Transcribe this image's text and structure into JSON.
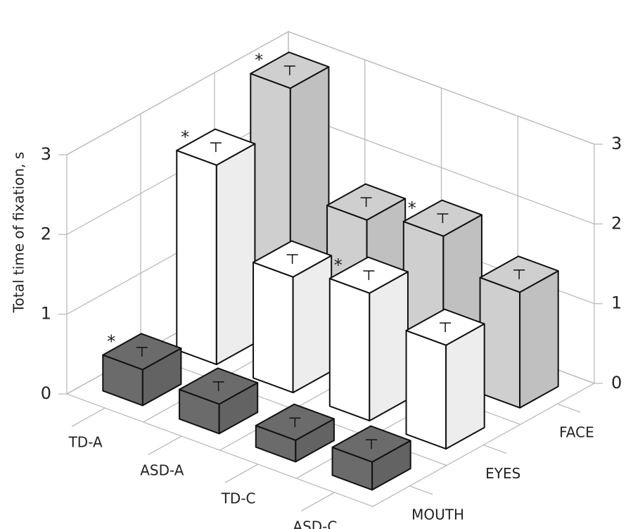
{
  "chart_data": {
    "type": "bar3d",
    "ylabel": "Total time of fixation, s",
    "categories": [
      "TD-A",
      "ASD-A",
      "TD-C",
      "ASD-C"
    ],
    "series": [
      {
        "name": "MOUTH",
        "color": "#6b6b6b",
        "values": [
          0.45,
          0.37,
          0.27,
          0.35
        ]
      },
      {
        "name": "EYES",
        "color": "#ffffff",
        "values": [
          2.5,
          1.45,
          1.6,
          1.3
        ]
      },
      {
        "name": "FACE",
        "color": "#cfcfcf",
        "values": [
          2.95,
          1.65,
          1.8,
          1.45
        ]
      }
    ],
    "ylim": [
      0,
      3
    ],
    "yticks": [
      0,
      1,
      2,
      3
    ],
    "y2lim": [
      0,
      3
    ],
    "y2ticks": [
      0,
      1,
      2,
      3
    ],
    "annotations": [
      {
        "text": "*",
        "series": "MOUTH",
        "category": "TD-A"
      },
      {
        "text": "*",
        "series": "EYES",
        "category": "TD-A"
      },
      {
        "text": "*",
        "series": "FACE",
        "category": "TD-A"
      },
      {
        "text": "*",
        "series": "EYES",
        "category": "TD-C"
      },
      {
        "text": "*",
        "series": "FACE",
        "category": "TD-C"
      }
    ],
    "grid": true
  }
}
